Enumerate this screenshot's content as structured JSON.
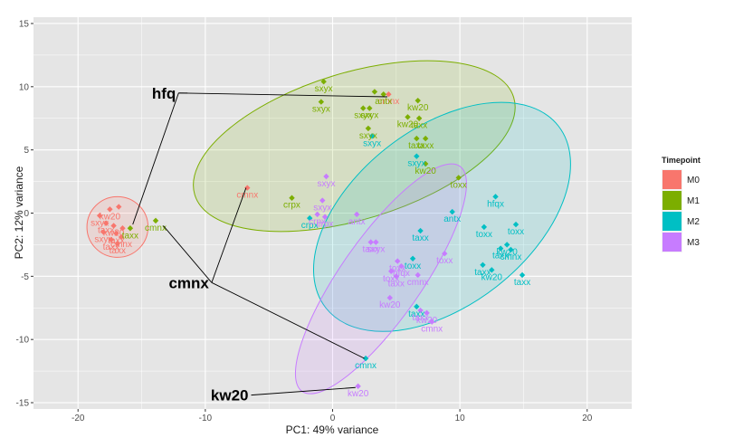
{
  "chart_data": {
    "type": "scatter",
    "title": "",
    "xlabel": "PC1: 49% variance",
    "ylabel": "PC2: 12% variance",
    "xlim": [
      -23.5,
      23.5
    ],
    "ylim": [
      -15.5,
      15.5
    ],
    "xticks": [
      -20,
      -10,
      0,
      10,
      20
    ],
    "yticks": [
      -15,
      -10,
      -5,
      0,
      5,
      10,
      15
    ],
    "grid": true,
    "legend": {
      "title": "Timepoint",
      "position": "right",
      "entries": [
        "M0",
        "M1",
        "M2",
        "M3"
      ]
    },
    "series": [
      {
        "name": "M0",
        "color": "#F8766D",
        "ellipse": {
          "cx": -16.9,
          "cy": -1.1,
          "rx": 2.4,
          "ry": 2.4,
          "angle": 0
        },
        "points": [
          {
            "x": -18.3,
            "y": -0.2,
            "label": "sxyx"
          },
          {
            "x": -17.5,
            "y": 0.3,
            "label": "kw20"
          },
          {
            "x": -16.8,
            "y": 0.5,
            "label": ""
          },
          {
            "x": -17.8,
            "y": -0.8,
            "label": "taxx"
          },
          {
            "x": -17.2,
            "y": -1.0,
            "label": "kw20"
          },
          {
            "x": -18.0,
            "y": -1.5,
            "label": "sxyx"
          },
          {
            "x": -17.0,
            "y": -1.6,
            "label": "taxx"
          },
          {
            "x": -16.6,
            "y": -1.9,
            "label": "cmnx"
          },
          {
            "x": -17.4,
            "y": -2.1,
            "label": "taxx"
          },
          {
            "x": -16.9,
            "y": -2.4,
            "label": "taxx"
          },
          {
            "x": -16.5,
            "y": -1.2,
            "label": ""
          },
          {
            "x": -6.7,
            "y": 2.0,
            "label": "cmnx"
          },
          {
            "x": 4.4,
            "y": 9.4,
            "label": "cmnx"
          }
        ]
      },
      {
        "name": "M1",
        "color": "#7CAE00",
        "ellipse": {
          "cx": 1.7,
          "cy": 5.3,
          "rx": 13.1,
          "ry": 5.8,
          "angle": -17
        },
        "points": [
          {
            "x": -15.9,
            "y": -1.2,
            "label": "taxx"
          },
          {
            "x": -13.9,
            "y": -0.6,
            "label": "cmnx"
          },
          {
            "x": -3.2,
            "y": 1.2,
            "label": "crpx"
          },
          {
            "x": -0.7,
            "y": 10.4,
            "label": "sxyx"
          },
          {
            "x": -0.9,
            "y": 8.8,
            "label": "sxyx"
          },
          {
            "x": 2.4,
            "y": 8.3,
            "label": "sxyx"
          },
          {
            "x": 2.9,
            "y": 8.3,
            "label": "sxyx"
          },
          {
            "x": 3.3,
            "y": 9.6,
            "label": ""
          },
          {
            "x": 4.0,
            "y": 9.4,
            "label": "antx"
          },
          {
            "x": 6.7,
            "y": 8.9,
            "label": "kw20"
          },
          {
            "x": 5.9,
            "y": 7.6,
            "label": "kw20"
          },
          {
            "x": 6.8,
            "y": 7.5,
            "label": "taxx"
          },
          {
            "x": 6.6,
            "y": 5.9,
            "label": "taxx"
          },
          {
            "x": 7.3,
            "y": 5.9,
            "label": "taxx"
          },
          {
            "x": 7.3,
            "y": 3.9,
            "label": "kw20"
          },
          {
            "x": 9.9,
            "y": 2.8,
            "label": "toxx"
          },
          {
            "x": 2.8,
            "y": 6.7,
            "label": "sxyx"
          }
        ]
      },
      {
        "name": "M2",
        "color": "#00BFC4",
        "ellipse": {
          "cx": 8.6,
          "cy": -0.3,
          "rx": 11.6,
          "ry": 7.0,
          "angle": -38
        },
        "points": [
          {
            "x": -1.8,
            "y": -0.4,
            "label": "crpx"
          },
          {
            "x": 3.1,
            "y": 6.1,
            "label": "sxyx"
          },
          {
            "x": 6.6,
            "y": 4.5,
            "label": "sxyx"
          },
          {
            "x": 9.4,
            "y": 0.1,
            "label": "antx"
          },
          {
            "x": 12.8,
            "y": 1.3,
            "label": "hfqx"
          },
          {
            "x": 11.9,
            "y": -1.1,
            "label": "toxx"
          },
          {
            "x": 14.4,
            "y": -0.9,
            "label": "toxx"
          },
          {
            "x": 13.7,
            "y": -2.5,
            "label": "kw20"
          },
          {
            "x": 13.2,
            "y": -2.8,
            "label": "taxx"
          },
          {
            "x": 14.0,
            "y": -2.9,
            "label": "cmnx"
          },
          {
            "x": 11.8,
            "y": -4.1,
            "label": "taxx"
          },
          {
            "x": 12.5,
            "y": -4.5,
            "label": "kw20"
          },
          {
            "x": 14.9,
            "y": -4.9,
            "label": "taxx"
          },
          {
            "x": 6.9,
            "y": -1.4,
            "label": "taxx"
          },
          {
            "x": 6.3,
            "y": -3.6,
            "label": "toxx"
          },
          {
            "x": 6.6,
            "y": -7.4,
            "label": "taxx"
          },
          {
            "x": 2.6,
            "y": -11.5,
            "label": "cmnx"
          }
        ]
      },
      {
        "name": "M3",
        "color": "#C77CFF",
        "ellipse": {
          "cx": 3.8,
          "cy": -5.2,
          "rx": 10.8,
          "ry": 3.2,
          "angle": -55
        },
        "points": [
          {
            "x": -0.5,
            "y": 2.9,
            "label": "sxyx"
          },
          {
            "x": -0.8,
            "y": 1.0,
            "label": "sxyx"
          },
          {
            "x": -1.2,
            "y": -0.1,
            "label": "crpx"
          },
          {
            "x": -0.6,
            "y": -0.3,
            "label": "crpx"
          },
          {
            "x": 1.9,
            "y": -0.1,
            "label": "antx"
          },
          {
            "x": 3.0,
            "y": -2.3,
            "label": "taxx"
          },
          {
            "x": 3.4,
            "y": -2.3,
            "label": "sxyx"
          },
          {
            "x": 5.1,
            "y": -3.8,
            "label": "toxx"
          },
          {
            "x": 4.6,
            "y": -4.6,
            "label": "toxx"
          },
          {
            "x": 5.4,
            "y": -4.2,
            "label": "hfqx"
          },
          {
            "x": 5.0,
            "y": -5.0,
            "label": "taxx"
          },
          {
            "x": 6.7,
            "y": -4.9,
            "label": "cmnx"
          },
          {
            "x": 8.8,
            "y": -3.2,
            "label": "toxx"
          },
          {
            "x": 4.5,
            "y": -6.7,
            "label": "kw20"
          },
          {
            "x": 6.9,
            "y": -7.7,
            "label": "taxx"
          },
          {
            "x": 7.4,
            "y": -7.9,
            "label": "kw20"
          },
          {
            "x": 7.8,
            "y": -8.6,
            "label": "cmnx"
          },
          {
            "x": 2.0,
            "y": -13.7,
            "label": "kw20"
          }
        ]
      }
    ],
    "annotations": [
      {
        "text": "hfq",
        "anchor": [
          -12.1,
          9.5
        ],
        "targets": [
          [
            -11.4,
            9.5
          ],
          [
            4.3,
            9.2
          ],
          [
            -15.7,
            -0.9
          ]
        ]
      },
      {
        "text": "cmnx",
        "anchor": [
          -9.5,
          -5.5
        ],
        "targets": [
          [
            -6.8,
            2.0
          ],
          [
            -13.3,
            -1.0
          ],
          [
            2.5,
            -11.5
          ]
        ]
      },
      {
        "text": "kw20",
        "anchor": [
          -6.4,
          -14.4
        ],
        "targets": [
          [
            1.8,
            -13.8
          ]
        ]
      }
    ]
  }
}
